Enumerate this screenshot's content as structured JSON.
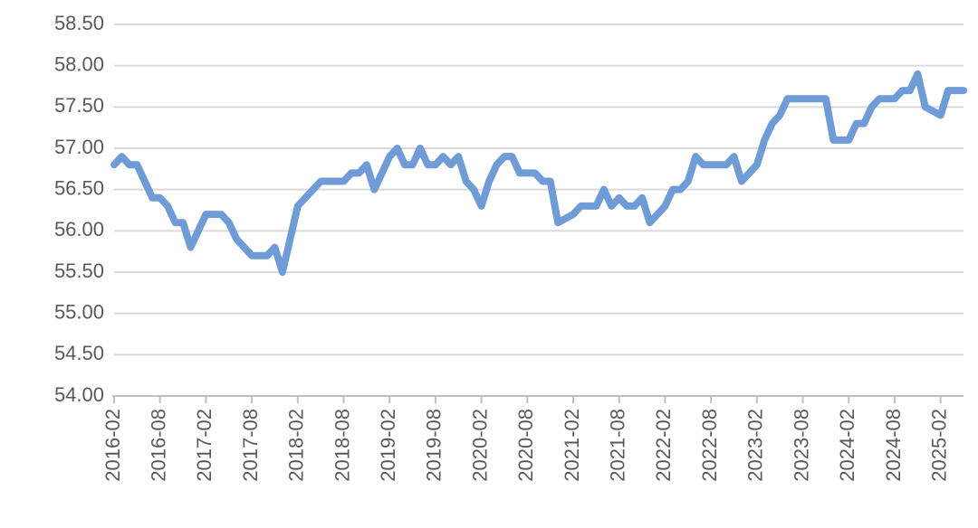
{
  "chart_data": {
    "type": "line",
    "categories": [
      "2016-02",
      null,
      null,
      null,
      null,
      null,
      "2016-08",
      null,
      null,
      null,
      null,
      null,
      "2017-02",
      null,
      null,
      null,
      null,
      null,
      "2017-08",
      null,
      null,
      null,
      null,
      null,
      "2018-02",
      null,
      null,
      null,
      null,
      null,
      "2018-08",
      null,
      null,
      null,
      null,
      null,
      "2019-02",
      null,
      null,
      null,
      null,
      null,
      "2019-08",
      null,
      null,
      null,
      null,
      null,
      "2020-02",
      null,
      null,
      null,
      null,
      null,
      "2020-08",
      null,
      null,
      null,
      null,
      null,
      "2021-02",
      null,
      null,
      null,
      null,
      null,
      "2021-08",
      null,
      null,
      null,
      null,
      null,
      "2022-02",
      null,
      null,
      null,
      null,
      null,
      "2022-08",
      null,
      null,
      null,
      null,
      null,
      "2023-02",
      null,
      null,
      null,
      null,
      null,
      "2023-08",
      null,
      null,
      null,
      null,
      null,
      "2024-02",
      null,
      null,
      null,
      null,
      null,
      "2024-08",
      null,
      null,
      null,
      null,
      null,
      "2025-02",
      null,
      null,
      null
    ],
    "values": [
      56.8,
      56.9,
      56.8,
      56.8,
      56.6,
      56.4,
      56.4,
      56.3,
      56.1,
      56.1,
      55.8,
      56.0,
      56.2,
      56.2,
      56.2,
      56.1,
      55.9,
      55.8,
      55.7,
      55.7,
      55.7,
      55.8,
      55.5,
      55.9,
      56.3,
      56.4,
      56.5,
      56.6,
      56.6,
      56.6,
      56.6,
      56.7,
      56.7,
      56.8,
      56.5,
      56.7,
      56.9,
      57.0,
      56.8,
      56.8,
      57.0,
      56.8,
      56.8,
      56.9,
      56.8,
      56.9,
      56.6,
      56.5,
      56.3,
      56.6,
      56.8,
      56.9,
      56.9,
      56.7,
      56.7,
      56.7,
      56.6,
      56.6,
      56.1,
      56.15,
      56.2,
      56.3,
      56.3,
      56.3,
      56.5,
      56.3,
      56.4,
      56.3,
      56.3,
      56.4,
      56.1,
      56.2,
      56.3,
      56.5,
      56.5,
      56.6,
      56.9,
      56.8,
      56.8,
      56.8,
      56.8,
      56.9,
      56.6,
      56.7,
      56.8,
      57.1,
      57.3,
      57.4,
      57.6,
      57.6,
      57.6,
      57.6,
      57.6,
      57.6,
      57.1,
      57.1,
      57.1,
      57.3,
      57.3,
      57.5,
      57.6,
      57.6,
      57.6,
      57.7,
      57.7,
      57.9,
      57.5,
      57.45,
      57.4,
      57.7,
      57.7,
      57.7
    ],
    "color": "#6f9bd6",
    "ylim": [
      54,
      58.5
    ],
    "yticks": [
      {
        "value": 54,
        "label": "54.00"
      },
      {
        "value": 54.5,
        "label": "54.50"
      },
      {
        "value": 55,
        "label": "55.00"
      },
      {
        "value": 55.5,
        "label": "55.50"
      },
      {
        "value": 56,
        "label": "56.00"
      },
      {
        "value": 56.5,
        "label": "56.50"
      },
      {
        "value": 57,
        "label": "57.00"
      },
      {
        "value": 57.5,
        "label": "57.50"
      },
      {
        "value": 58,
        "label": "58.00"
      },
      {
        "value": 58.5,
        "label": "58.50"
      }
    ],
    "grid": true
  }
}
